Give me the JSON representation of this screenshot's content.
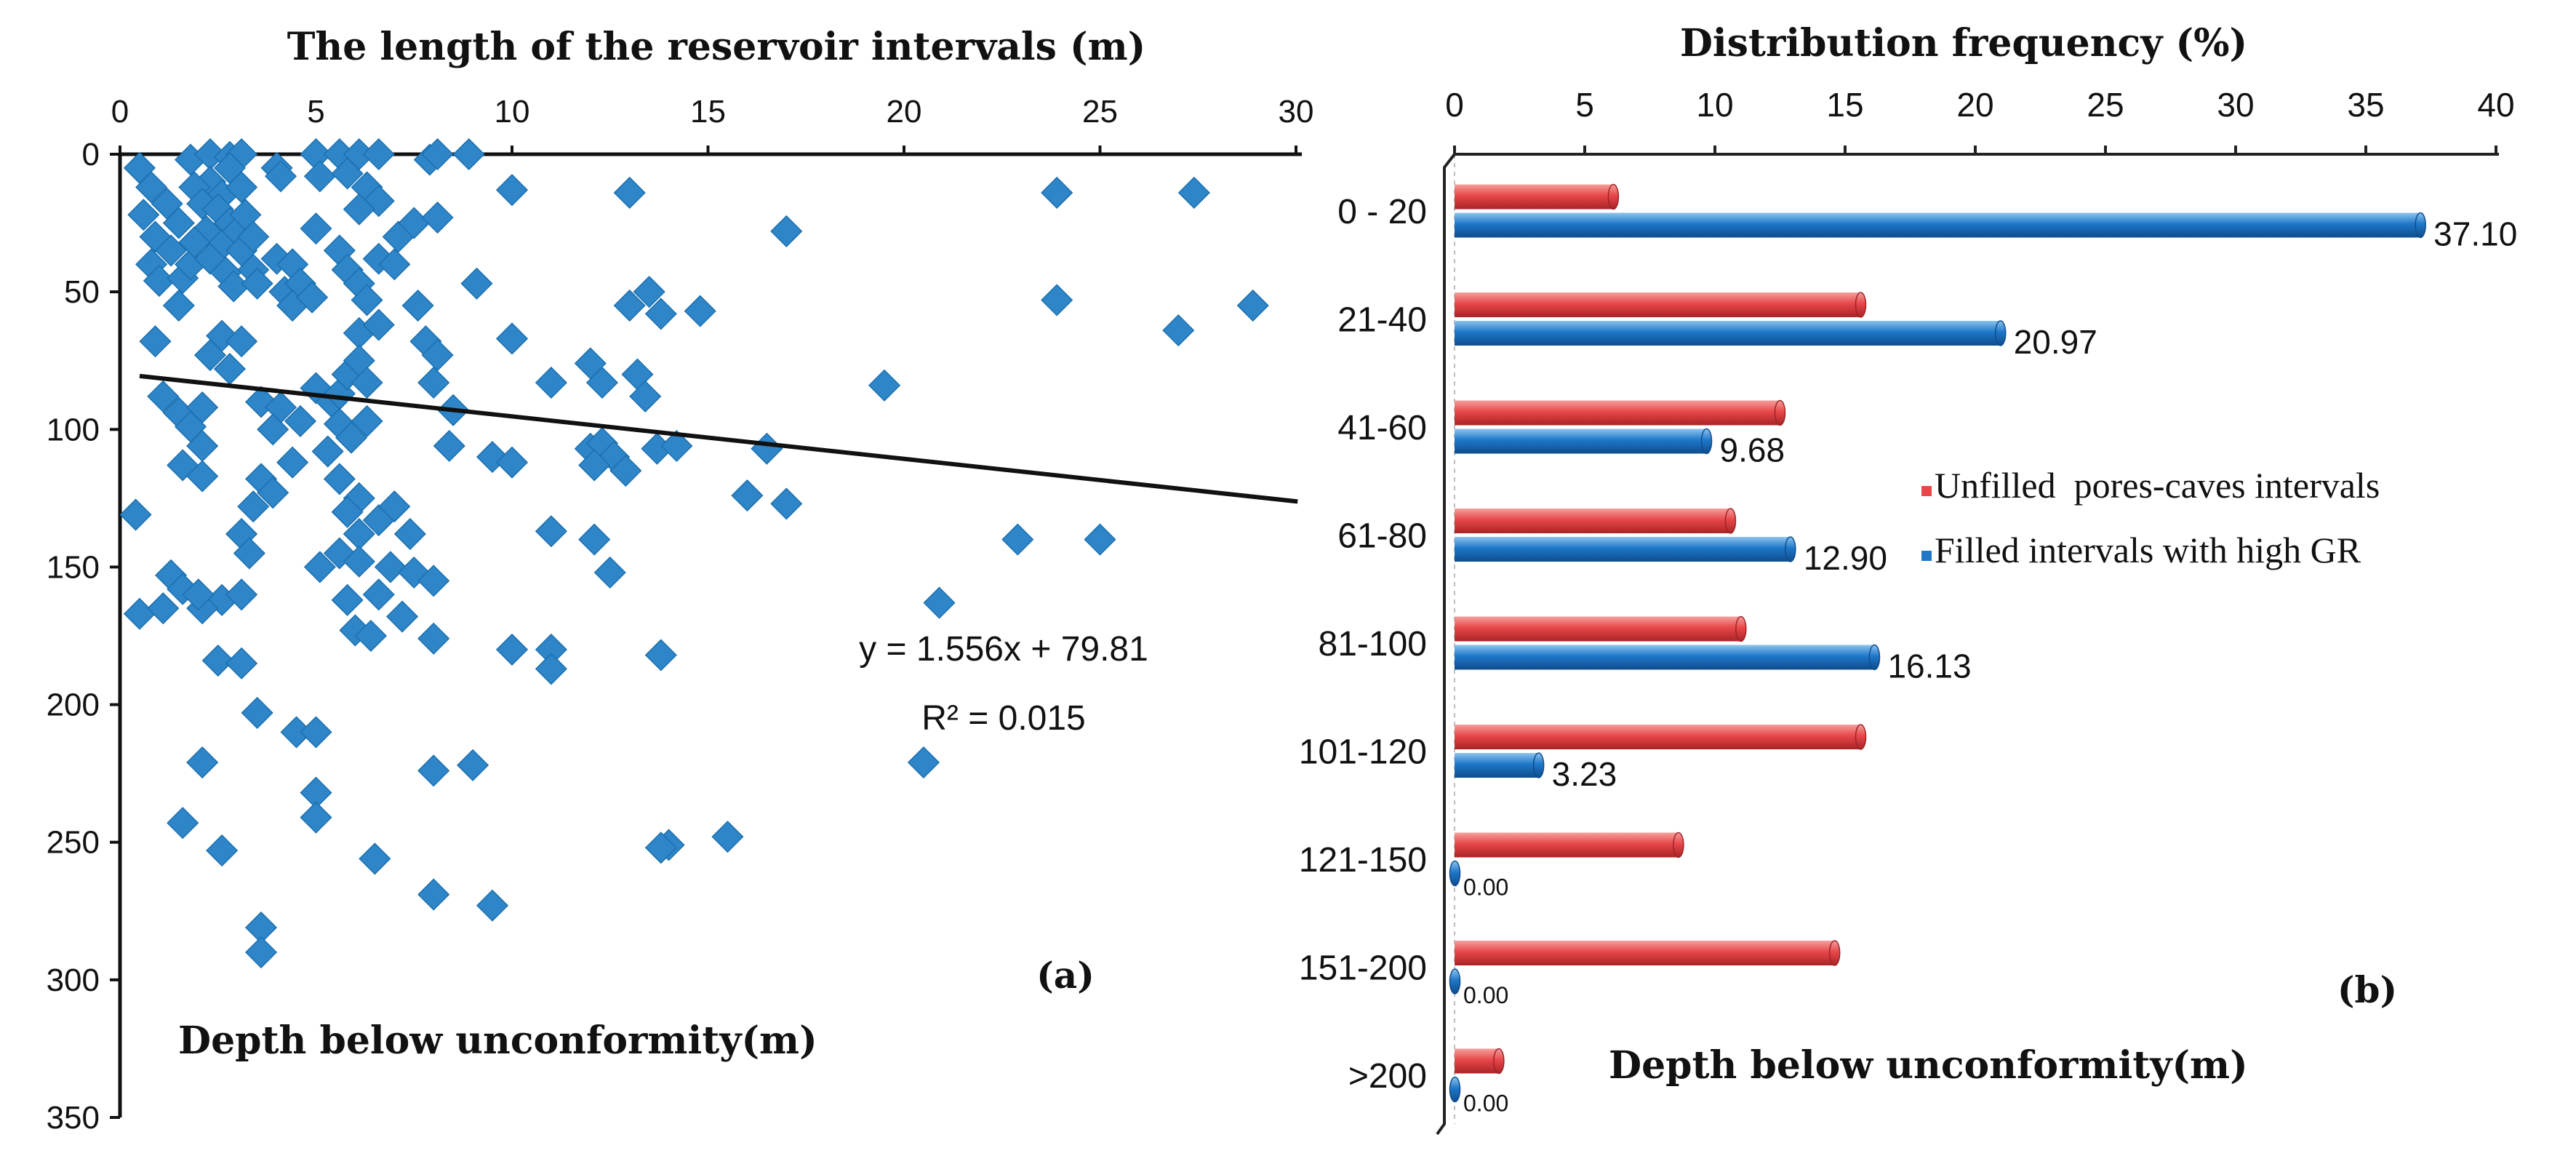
{
  "chart_data": [
    {
      "id": "a",
      "type": "scatter",
      "title": "The length of the reservoir intervals (m)",
      "xlabel": "The length of the reservoir intervals (m)",
      "ylabel": "Depth below unconformity(m)",
      "panel_label": "(a)",
      "xlim": [
        0,
        30
      ],
      "ylim": [
        0,
        350
      ],
      "y_inverted": true,
      "x_ticks": [
        0,
        5,
        10,
        15,
        20,
        25,
        30
      ],
      "y_ticks": [
        0,
        50,
        100,
        150,
        200,
        250,
        300,
        350
      ],
      "marker_color": "#2E86C8",
      "trendline": {
        "slope": 1.556,
        "intercept": 79.81,
        "x_range": [
          0.5,
          29.3
        ],
        "equation": "y = 1.556x + 79.81",
        "r_squared": "R² = 0.015"
      },
      "points": [
        [
          0.5,
          5
        ],
        [
          0.8,
          12
        ],
        [
          0.6,
          22
        ],
        [
          1.2,
          18
        ],
        [
          0.9,
          30
        ],
        [
          1.5,
          25
        ],
        [
          1.3,
          35
        ],
        [
          0.8,
          40
        ],
        [
          1.0,
          46
        ],
        [
          1.6,
          45
        ],
        [
          1.8,
          40
        ],
        [
          1.5,
          55
        ],
        [
          1.8,
          2
        ],
        [
          2.3,
          0
        ],
        [
          2.8,
          1
        ],
        [
          3.1,
          0
        ],
        [
          2.3,
          10
        ],
        [
          2.6,
          15
        ],
        [
          1.9,
          12
        ],
        [
          2.1,
          18
        ],
        [
          2.5,
          20
        ],
        [
          2.8,
          25
        ],
        [
          2.2,
          28
        ],
        [
          2.6,
          33
        ],
        [
          3.0,
          28
        ],
        [
          3.2,
          22
        ],
        [
          1.9,
          32
        ],
        [
          2.3,
          38
        ],
        [
          2.7,
          43
        ],
        [
          2.9,
          48
        ],
        [
          3.1,
          35
        ],
        [
          3.4,
          30
        ],
        [
          3.4,
          42
        ],
        [
          3.5,
          47
        ],
        [
          3.1,
          12
        ],
        [
          2.8,
          5
        ],
        [
          4.0,
          5
        ],
        [
          4.1,
          8
        ],
        [
          4.0,
          38
        ],
        [
          4.4,
          40
        ],
        [
          4.2,
          50
        ],
        [
          4.6,
          47
        ],
        [
          4.4,
          55
        ],
        [
          4.9,
          52
        ],
        [
          5.0,
          0
        ],
        [
          5.1,
          8
        ],
        [
          5.0,
          27
        ],
        [
          5.6,
          0
        ],
        [
          6.1,
          0
        ],
        [
          6.6,
          0
        ],
        [
          5.8,
          7
        ],
        [
          6.3,
          12
        ],
        [
          6.6,
          17
        ],
        [
          6.1,
          20
        ],
        [
          5.6,
          35
        ],
        [
          5.8,
          42
        ],
        [
          6.1,
          47
        ],
        [
          6.6,
          38
        ],
        [
          6.3,
          53
        ],
        [
          7.1,
          30
        ],
        [
          7.5,
          25
        ],
        [
          7.0,
          40
        ],
        [
          7.9,
          2
        ],
        [
          8.1,
          0
        ],
        [
          8.1,
          23
        ],
        [
          7.6,
          55
        ],
        [
          7.8,
          68
        ],
        [
          6.1,
          65
        ],
        [
          6.6,
          62
        ],
        [
          8.9,
          0
        ],
        [
          9.1,
          47
        ],
        [
          10.0,
          13
        ],
        [
          10.0,
          67
        ],
        [
          0.9,
          68
        ],
        [
          1.1,
          88
        ],
        [
          1.5,
          94
        ],
        [
          1.8,
          99
        ],
        [
          2.1,
          92
        ],
        [
          1.6,
          113
        ],
        [
          2.1,
          117
        ],
        [
          2.1,
          106
        ],
        [
          2.6,
          66
        ],
        [
          2.3,
          73
        ],
        [
          2.8,
          78
        ],
        [
          3.1,
          68
        ],
        [
          3.6,
          90
        ],
        [
          4.1,
          92
        ],
        [
          3.9,
          100
        ],
        [
          4.6,
          97
        ],
        [
          4.4,
          112
        ],
        [
          3.6,
          118
        ],
        [
          3.9,
          123
        ],
        [
          3.4,
          128
        ],
        [
          3.1,
          138
        ],
        [
          3.3,
          145
        ],
        [
          2.6,
          162
        ],
        [
          3.1,
          160
        ],
        [
          2.1,
          165
        ],
        [
          1.3,
          153
        ],
        [
          1.6,
          158
        ],
        [
          2.0,
          160
        ],
        [
          0.4,
          131
        ],
        [
          0.5,
          167
        ],
        [
          1.1,
          165
        ],
        [
          5.0,
          85
        ],
        [
          5.4,
          90
        ],
        [
          5.6,
          87
        ],
        [
          5.8,
          80
        ],
        [
          6.1,
          75
        ],
        [
          6.3,
          83
        ],
        [
          5.6,
          98
        ],
        [
          5.9,
          103
        ],
        [
          6.3,
          97
        ],
        [
          5.3,
          108
        ],
        [
          5.6,
          118
        ],
        [
          6.1,
          125
        ],
        [
          5.8,
          130
        ],
        [
          6.1,
          138
        ],
        [
          6.6,
          133
        ],
        [
          7.0,
          128
        ],
        [
          7.4,
          138
        ],
        [
          5.6,
          145
        ],
        [
          6.1,
          148
        ],
        [
          6.9,
          150
        ],
        [
          7.5,
          152
        ],
        [
          6.6,
          160
        ],
        [
          5.8,
          162
        ],
        [
          5.1,
          150
        ],
        [
          6.0,
          173
        ],
        [
          6.4,
          175
        ],
        [
          7.2,
          168
        ],
        [
          8.1,
          73
        ],
        [
          8.0,
          83
        ],
        [
          8.5,
          93
        ],
        [
          8.4,
          106
        ],
        [
          8.0,
          155
        ],
        [
          8.0,
          176
        ],
        [
          9.5,
          110
        ],
        [
          10.0,
          112
        ],
        [
          11.0,
          83
        ],
        [
          11.0,
          137
        ],
        [
          12.0,
          76
        ],
        [
          12.3,
          83
        ],
        [
          12.0,
          107
        ],
        [
          12.3,
          105
        ],
        [
          12.6,
          110
        ],
        [
          12.1,
          113
        ],
        [
          12.9,
          115
        ],
        [
          13.2,
          80
        ],
        [
          12.1,
          140
        ],
        [
          12.5,
          152
        ],
        [
          10.0,
          180
        ],
        [
          11.0,
          180
        ],
        [
          11.0,
          187
        ],
        [
          13.4,
          88
        ],
        [
          13.7,
          107
        ],
        [
          14.2,
          106
        ],
        [
          13.8,
          182
        ],
        [
          13.0,
          14
        ],
        [
          13.0,
          55
        ],
        [
          13.5,
          50
        ],
        [
          13.8,
          58
        ],
        [
          14.8,
          57
        ],
        [
          16.0,
          124
        ],
        [
          16.5,
          107
        ],
        [
          17.0,
          127
        ],
        [
          17.0,
          28
        ],
        [
          19.5,
          84
        ],
        [
          20.9,
          163
        ],
        [
          20.5,
          221
        ],
        [
          22.9,
          140
        ],
        [
          23.9,
          14
        ],
        [
          23.9,
          53
        ],
        [
          25.0,
          140
        ],
        [
          27.0,
          64
        ],
        [
          27.4,
          14
        ],
        [
          28.9,
          55
        ],
        [
          3.5,
          203
        ],
        [
          2.1,
          221
        ],
        [
          1.6,
          243
        ],
        [
          2.6,
          253
        ],
        [
          2.5,
          184
        ],
        [
          3.1,
          185
        ],
        [
          4.5,
          210
        ],
        [
          5.0,
          210
        ],
        [
          5.0,
          232
        ],
        [
          5.0,
          241
        ],
        [
          6.5,
          256
        ],
        [
          8.0,
          224
        ],
        [
          9.0,
          222
        ],
        [
          8.0,
          269
        ],
        [
          9.5,
          273
        ],
        [
          14.0,
          251
        ],
        [
          13.8,
          252
        ],
        [
          15.5,
          248
        ],
        [
          3.6,
          281
        ],
        [
          3.6,
          290
        ]
      ]
    },
    {
      "id": "b",
      "type": "bar",
      "orientation": "horizontal",
      "title": "Distribution frequency (%)",
      "xlabel": "Distribution frequency (%)",
      "ylabel": "Depth below unconformity(m)",
      "panel_label": "(b)",
      "xlim": [
        0,
        40
      ],
      "x_ticks": [
        0,
        5,
        10,
        15,
        20,
        25,
        30,
        35,
        40
      ],
      "categories": [
        "0 - 20",
        "21-40",
        "41-60",
        "61-80",
        "81-100",
        "101-120",
        "121-150",
        "151-200",
        ">200"
      ],
      "series": [
        {
          "name": "Unfilled  pores-caves intervals",
          "color": "#E8474A",
          "values": [
            6.1,
            15.6,
            12.5,
            10.6,
            11.0,
            15.6,
            8.6,
            14.6,
            1.7
          ]
        },
        {
          "name": "Filled intervals with high GR",
          "color": "#1F77C9",
          "values": [
            37.1,
            20.97,
            9.68,
            12.9,
            16.13,
            3.23,
            0.0,
            0.0,
            0.0
          ],
          "data_labels": [
            "37.10",
            "20.97",
            "9.68",
            "12.90",
            "16.13",
            "3.23",
            "0.00",
            "0.00",
            "0.00"
          ]
        }
      ],
      "legend": {
        "position": "middle-right",
        "entries": [
          "Unfilled  pores-caves intervals",
          "Filled intervals with high GR"
        ]
      }
    }
  ]
}
